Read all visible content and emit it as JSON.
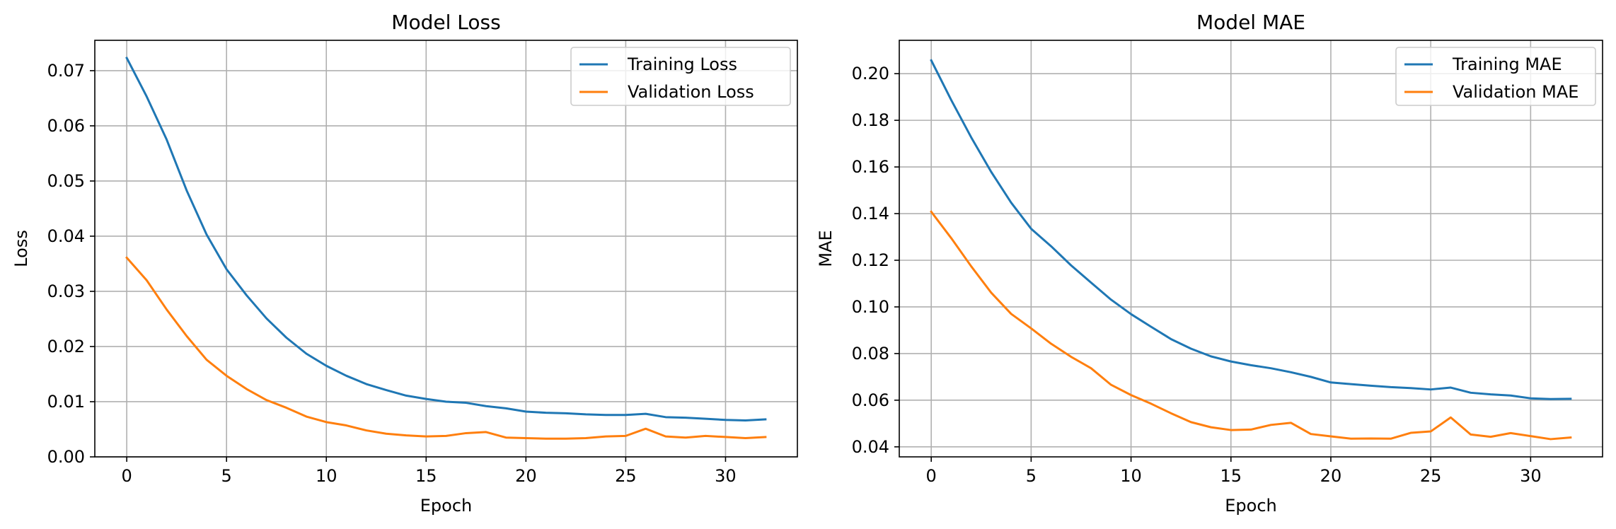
{
  "chart_data": [
    {
      "type": "line",
      "title": "Model Loss",
      "xlabel": "Epoch",
      "ylabel": "Loss",
      "xlim": [
        -1.6,
        33.6
      ],
      "ylim": [
        0.0,
        0.0755
      ],
      "xticks": [
        0,
        5,
        10,
        15,
        20,
        25,
        30
      ],
      "yticks": [
        0.0,
        0.01,
        0.02,
        0.03,
        0.04,
        0.05,
        0.06,
        0.07
      ],
      "ytick_labels": [
        "0.00",
        "0.01",
        "0.02",
        "0.03",
        "0.04",
        "0.05",
        "0.06",
        "0.07"
      ],
      "grid": true,
      "legend_position": "top-right",
      "x": [
        0,
        1,
        2,
        3,
        4,
        5,
        6,
        7,
        8,
        9,
        10,
        11,
        12,
        13,
        14,
        15,
        16,
        17,
        18,
        19,
        20,
        21,
        22,
        23,
        24,
        25,
        26,
        27,
        28,
        29,
        30,
        31,
        32
      ],
      "series": [
        {
          "name": "Training Loss",
          "color": "#1f77b4",
          "values": [
            0.0723,
            0.0653,
            0.0575,
            0.0483,
            0.0403,
            0.034,
            0.0293,
            0.0251,
            0.0216,
            0.0187,
            0.0165,
            0.0147,
            0.0132,
            0.0121,
            0.0111,
            0.0105,
            0.01,
            0.0098,
            0.0092,
            0.0088,
            0.0082,
            0.008,
            0.0079,
            0.0077,
            0.0076,
            0.0076,
            0.0078,
            0.0072,
            0.0071,
            0.0069,
            0.0067,
            0.0066,
            0.0068
          ]
        },
        {
          "name": "Validation Loss",
          "color": "#ff7f0e",
          "values": [
            0.0361,
            0.032,
            0.0267,
            0.0219,
            0.0176,
            0.0147,
            0.0123,
            0.0103,
            0.0089,
            0.0073,
            0.0063,
            0.0057,
            0.0048,
            0.0042,
            0.0039,
            0.0037,
            0.0038,
            0.0043,
            0.0045,
            0.0035,
            0.0034,
            0.0033,
            0.0033,
            0.0034,
            0.0037,
            0.0038,
            0.0051,
            0.0037,
            0.0035,
            0.0038,
            0.0036,
            0.0034,
            0.0036
          ]
        }
      ]
    },
    {
      "type": "line",
      "title": "Model MAE",
      "xlabel": "Epoch",
      "ylabel": "MAE",
      "xlim": [
        -1.6,
        33.6
      ],
      "ylim": [
        0.0357,
        0.2143
      ],
      "xticks": [
        0,
        5,
        10,
        15,
        20,
        25,
        30
      ],
      "yticks": [
        0.04,
        0.06,
        0.08,
        0.1,
        0.12,
        0.14,
        0.16,
        0.18,
        0.2
      ],
      "ytick_labels": [
        "0.04",
        "0.06",
        "0.08",
        "0.10",
        "0.12",
        "0.14",
        "0.16",
        "0.18",
        "0.20"
      ],
      "grid": true,
      "legend_position": "top-right",
      "x": [
        0,
        1,
        2,
        3,
        4,
        5,
        6,
        7,
        8,
        9,
        10,
        11,
        12,
        13,
        14,
        15,
        16,
        17,
        18,
        19,
        20,
        21,
        22,
        23,
        24,
        25,
        26,
        27,
        28,
        29,
        30,
        31,
        32
      ],
      "series": [
        {
          "name": "Training MAE",
          "color": "#1f77b4",
          "values": [
            0.2057,
            0.1887,
            0.1727,
            0.1579,
            0.1447,
            0.1335,
            0.126,
            0.1178,
            0.1104,
            0.1031,
            0.0969,
            0.0915,
            0.0862,
            0.0821,
            0.0788,
            0.0766,
            0.075,
            0.0737,
            0.072,
            0.07,
            0.0676,
            0.0669,
            0.0662,
            0.0656,
            0.0652,
            0.0646,
            0.0654,
            0.0632,
            0.0625,
            0.062,
            0.0608,
            0.0605,
            0.0606
          ]
        },
        {
          "name": "Validation MAE",
          "color": "#ff7f0e",
          "values": [
            0.1408,
            0.1295,
            0.1174,
            0.1061,
            0.097,
            0.0908,
            0.0842,
            0.0786,
            0.0737,
            0.0666,
            0.0622,
            0.0585,
            0.0544,
            0.0506,
            0.0484,
            0.0472,
            0.0474,
            0.0494,
            0.0503,
            0.0455,
            0.0445,
            0.0435,
            0.0436,
            0.0435,
            0.046,
            0.0466,
            0.0526,
            0.0453,
            0.0443,
            0.0459,
            0.0446,
            0.0433,
            0.044
          ]
        }
      ]
    }
  ]
}
